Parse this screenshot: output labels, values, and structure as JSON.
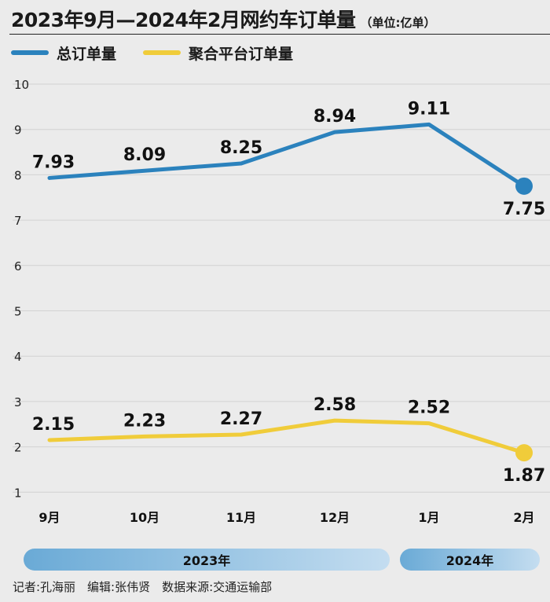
{
  "header": {
    "title": "2023年9月—2024年2月网约车订单量",
    "unit": "（单位:亿单）"
  },
  "legend": [
    {
      "label": "总订单量",
      "color": "#2b82bd"
    },
    {
      "label": "聚合平台订单量",
      "color": "#f0cc3a"
    }
  ],
  "chart_data": {
    "type": "line",
    "categories": [
      "9月",
      "10月",
      "11月",
      "12月",
      "1月",
      "2月"
    ],
    "ylim": [
      0,
      10
    ],
    "yticks": [
      1,
      2,
      3,
      4,
      5,
      6,
      7,
      8,
      9,
      10
    ],
    "grid": true,
    "legend_position": "top-left",
    "series": [
      {
        "name": "总订单量",
        "color": "#2b82bd",
        "values": [
          7.93,
          8.09,
          8.25,
          8.94,
          9.11,
          7.75
        ],
        "labels": [
          "7.93",
          "8.09",
          "8.25",
          "8.94",
          "9.11",
          "7.75"
        ]
      },
      {
        "name": "聚合平台订单量",
        "color": "#f0cc3a",
        "values": [
          2.15,
          2.23,
          2.27,
          2.58,
          2.52,
          1.87
        ],
        "labels": [
          "2.15",
          "2.23",
          "2.27",
          "2.58",
          "2.52",
          "1.87"
        ]
      }
    ],
    "year_groups": [
      {
        "label": "2023年",
        "categories": [
          "9月",
          "10月",
          "11月",
          "12月"
        ]
      },
      {
        "label": "2024年",
        "categories": [
          "1月",
          "2月"
        ]
      }
    ]
  },
  "credits": "记者:孔海丽　编辑:张伟贤　数据来源:交通运输部"
}
